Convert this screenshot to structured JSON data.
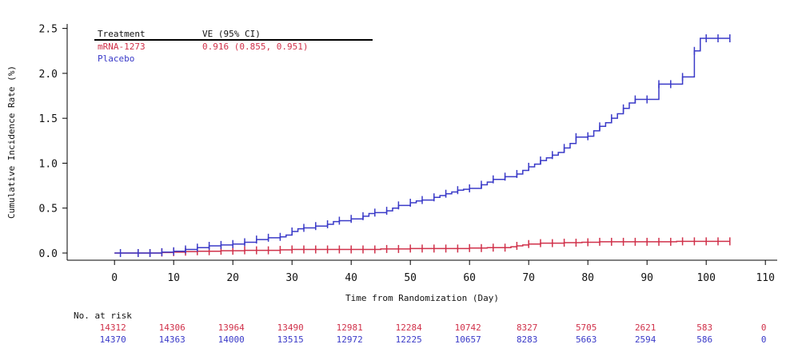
{
  "chart_data": {
    "type": "line",
    "title": "",
    "xlabel": "Time from Randomization (Day)",
    "ylabel": "Cumulative Incidence Rate (%)",
    "xlim": [
      -8,
      112
    ],
    "ylim": [
      -0.08,
      2.55
    ],
    "x_ticks": [
      0,
      10,
      20,
      30,
      40,
      50,
      60,
      70,
      80,
      90,
      100,
      110
    ],
    "y_ticks": [
      0.0,
      0.5,
      1.0,
      1.5,
      2.0,
      2.5
    ],
    "x_tick_labels": [
      "0",
      "10",
      "20",
      "30",
      "40",
      "50",
      "60",
      "70",
      "80",
      "90",
      "100",
      "110"
    ],
    "y_tick_labels": [
      "0.0",
      "0.5",
      "1.0",
      "1.5",
      "2.0",
      "2.5"
    ],
    "grid": false,
    "legend": {
      "placement": "top-left",
      "header_treatment": "Treatment",
      "header_ve": "VE (95% CI)",
      "entries": [
        {
          "name": "mRNA-1273",
          "ve": "0.916 (0.855, 0.951)"
        },
        {
          "name": "Placebo",
          "ve": ""
        }
      ]
    },
    "series": [
      {
        "name": "mRNA-1273",
        "color": "#d0314a",
        "x": [
          0,
          4,
          6,
          8,
          10,
          12,
          14,
          16,
          18,
          20,
          22,
          24,
          26,
          28,
          30,
          35,
          40,
          45,
          50,
          55,
          60,
          63,
          66,
          67,
          68,
          69,
          70,
          72,
          76,
          79,
          82,
          88,
          95,
          104
        ],
        "y": [
          0,
          0,
          0,
          0.005,
          0.01,
          0.015,
          0.02,
          0.02,
          0.025,
          0.025,
          0.03,
          0.03,
          0.03,
          0.035,
          0.04,
          0.04,
          0.04,
          0.045,
          0.05,
          0.05,
          0.055,
          0.06,
          0.06,
          0.07,
          0.08,
          0.09,
          0.1,
          0.11,
          0.115,
          0.12,
          0.125,
          0.125,
          0.13,
          0.13
        ],
        "censor_x": [
          4,
          6,
          8,
          10,
          12,
          14,
          16,
          18,
          20,
          22,
          24,
          26,
          28,
          30,
          32,
          34,
          36,
          38,
          40,
          42,
          44,
          46,
          48,
          50,
          52,
          54,
          56,
          58,
          60,
          62,
          64,
          66,
          68,
          70,
          72,
          74,
          76,
          78,
          80,
          82,
          84,
          86,
          88,
          90,
          92,
          94,
          96,
          98,
          100,
          102,
          104
        ]
      },
      {
        "name": "Placebo",
        "color": "#3a3ac8",
        "x": [
          0,
          4,
          6,
          8,
          10,
          12,
          14,
          16,
          18,
          20,
          22,
          24,
          26,
          28,
          29,
          30,
          31,
          32,
          34,
          36,
          37,
          38,
          40,
          42,
          43,
          44,
          46,
          47,
          48,
          50,
          51,
          52,
          54,
          55,
          56,
          57,
          58,
          59,
          60,
          62,
          63,
          64,
          66,
          68,
          69,
          70,
          71,
          72,
          73,
          74,
          75,
          76,
          77,
          78,
          80,
          81,
          82,
          83,
          84,
          85,
          86,
          87,
          88,
          90,
          92,
          94,
          96,
          98,
          99,
          104
        ],
        "y": [
          0,
          0,
          0,
          0.01,
          0.02,
          0.04,
          0.06,
          0.08,
          0.09,
          0.1,
          0.12,
          0.15,
          0.17,
          0.18,
          0.2,
          0.24,
          0.27,
          0.28,
          0.3,
          0.32,
          0.35,
          0.36,
          0.38,
          0.41,
          0.44,
          0.45,
          0.47,
          0.5,
          0.53,
          0.56,
          0.58,
          0.59,
          0.62,
          0.64,
          0.66,
          0.68,
          0.7,
          0.71,
          0.72,
          0.76,
          0.79,
          0.82,
          0.85,
          0.88,
          0.92,
          0.96,
          0.99,
          1.03,
          1.06,
          1.09,
          1.12,
          1.17,
          1.22,
          1.29,
          1.3,
          1.36,
          1.41,
          1.45,
          1.5,
          1.55,
          1.61,
          1.67,
          1.71,
          1.71,
          1.88,
          1.88,
          1.96,
          2.25,
          2.39,
          2.39
        ],
        "censor_x": [
          1,
          4,
          6,
          8,
          10,
          12,
          14,
          16,
          18,
          20,
          22,
          24,
          26,
          28,
          30,
          32,
          34,
          36,
          38,
          40,
          42,
          44,
          46,
          48,
          50,
          52,
          54,
          56,
          58,
          60,
          62,
          64,
          66,
          68,
          70,
          72,
          74,
          76,
          78,
          80,
          82,
          84,
          86,
          88,
          90,
          92,
          94,
          96,
          98,
          100,
          102,
          104
        ]
      }
    ]
  },
  "risk_table": {
    "title": "No. at risk",
    "rows": [
      {
        "name": "mRNA-1273",
        "color": "#d0314a",
        "values": [
          "14312",
          "14306",
          "13964",
          "13490",
          "12981",
          "12284",
          "10742",
          "8327",
          "5705",
          "2621",
          "583",
          "0"
        ]
      },
      {
        "name": "Placebo",
        "color": "#3a3ac8",
        "values": [
          "14370",
          "14363",
          "14000",
          "13515",
          "12972",
          "12225",
          "10657",
          "8283",
          "5663",
          "2594",
          "586",
          "0"
        ]
      }
    ]
  }
}
